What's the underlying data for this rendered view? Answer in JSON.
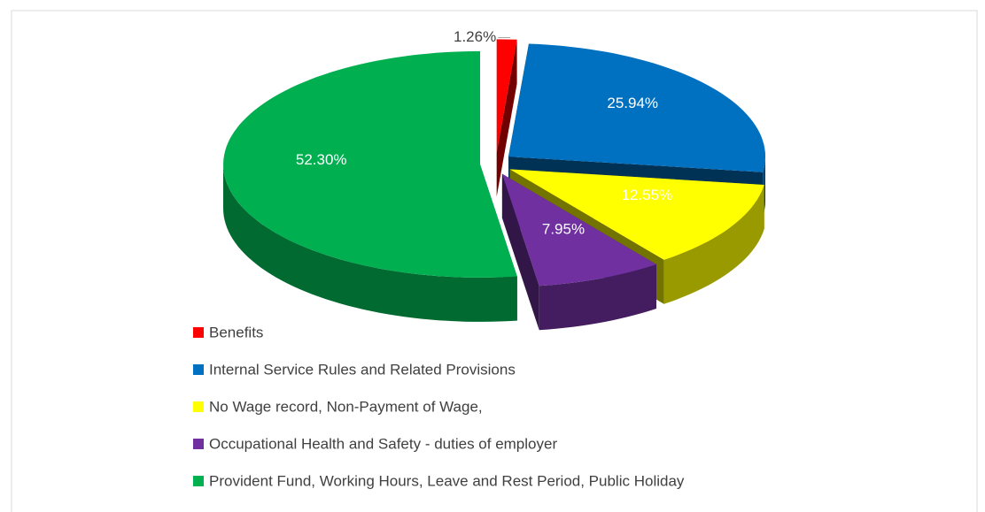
{
  "chart_data": {
    "type": "pie",
    "categories": [
      "Benefits",
      "Internal Service Rules and Related Provisions",
      "No Wage record, Non-Payment of Wage,",
      "Occupational Health and Safety - duties of employer",
      "Provident Fund, Working Hours, Leave and Rest Period, Public Holiday"
    ],
    "values": [
      1.26,
      25.94,
      12.55,
      7.95,
      52.3
    ],
    "value_labels": [
      "1.26%",
      "25.94%",
      "12.55%",
      "7.95%",
      "52.30%"
    ],
    "colors": [
      "#ff0000",
      "#0070c0",
      "#ffff00",
      "#7030a0",
      "#00b050"
    ],
    "legend": "bottom"
  }
}
